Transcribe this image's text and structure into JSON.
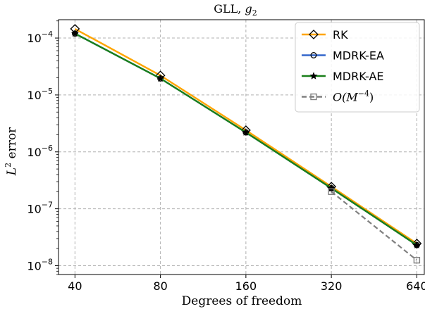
{
  "chart_data": {
    "type": "line",
    "title": "GLL, g2",
    "title_parts": {
      "text": "GLL, ",
      "italic": "g",
      "sub": "2"
    },
    "xlabel": "Degrees of freedom",
    "ylabel": "L2 error",
    "ylabel_parts": {
      "italic": "L",
      "sup": "2",
      "text": " error"
    },
    "x_scale": "log2",
    "y_scale": "log10",
    "x": [
      40,
      80,
      160,
      320,
      640
    ],
    "x_tick_labels": [
      "40",
      "80",
      "160",
      "320",
      "640"
    ],
    "xlim": [
      35,
      680
    ],
    "ylim": [
      7e-09,
      0.00021
    ],
    "y_ticks": [
      {
        "value": 1e-08,
        "base": "10",
        "exp": "−8"
      },
      {
        "value": 1e-07,
        "base": "10",
        "exp": "−7"
      },
      {
        "value": 1e-06,
        "base": "10",
        "exp": "−6"
      },
      {
        "value": 1e-05,
        "base": "10",
        "exp": "−5"
      },
      {
        "value": 0.0001,
        "base": "10",
        "exp": "−4"
      }
    ],
    "grid": true,
    "legend_position": "top-right",
    "series": [
      {
        "name": "RK",
        "color": "#ffa500",
        "marker": "diamond",
        "linestyle": "solid",
        "values": [
          0.000145,
          2.2e-05,
          2.4e-06,
          2.45e-07,
          2.45e-08
        ]
      },
      {
        "name": "MDRK-EA",
        "color": "#3366cc",
        "marker": "circle",
        "linestyle": "solid",
        "values": [
          0.00012,
          1.95e-05,
          2.2e-06,
          2.3e-07,
          2.3e-08
        ]
      },
      {
        "name": "MDRK-AE",
        "color": "#1a7f1a",
        "marker": "star",
        "linestyle": "solid",
        "values": [
          0.00012,
          1.95e-05,
          2.2e-06,
          2.3e-07,
          2.3e-08
        ]
      },
      {
        "name": "O(M^-4)",
        "color": "#808080",
        "marker": "square",
        "linestyle": "dashed",
        "legend_parts": {
          "pre": "O(M",
          "sup": "−4",
          "post": ")"
        },
        "x": [
          320,
          640
        ],
        "values": [
          2e-07,
          1.25e-08
        ]
      }
    ]
  }
}
